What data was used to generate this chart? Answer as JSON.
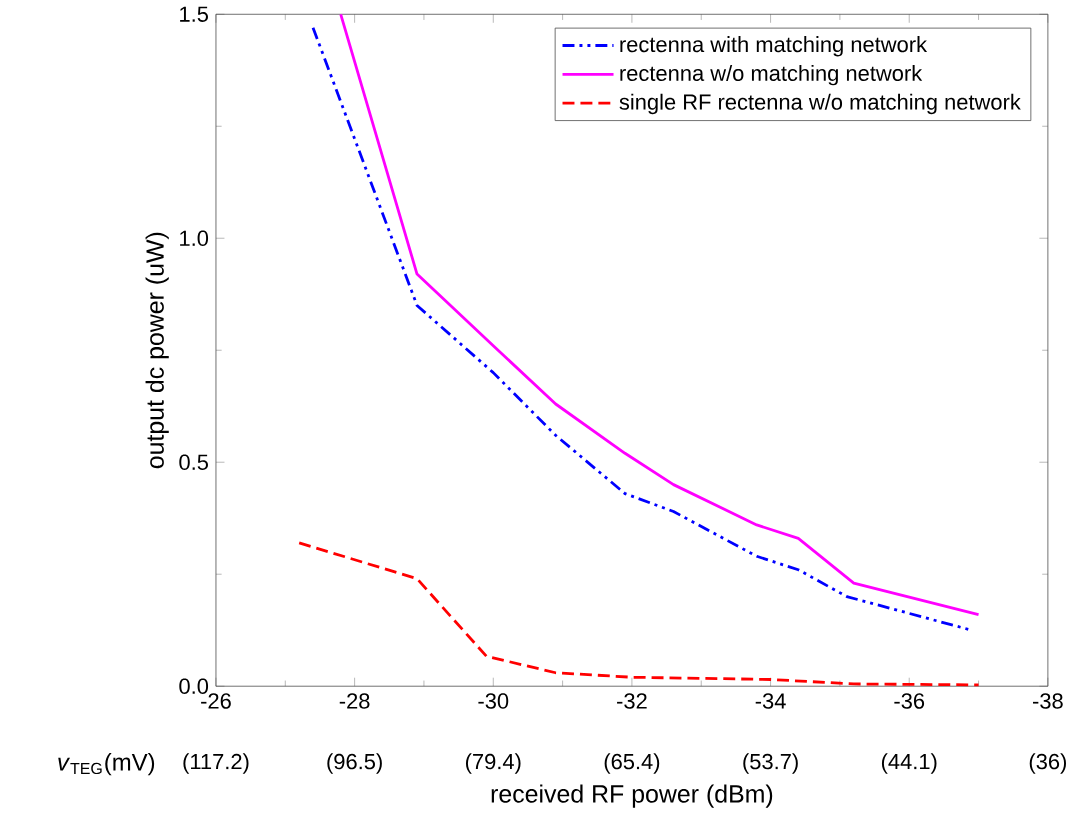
{
  "chart_data": {
    "type": "line",
    "xlabel": "received RF power (dBm)",
    "ylabel": "output dc power (uW)",
    "xlim": [
      -26,
      -38
    ],
    "ylim": [
      0,
      1.5
    ],
    "xticks": [
      -26,
      -28,
      -30,
      -32,
      -34,
      -36,
      -38
    ],
    "yticks": [
      {
        "value": 0,
        "label": "0.0"
      },
      {
        "value": 0.5,
        "label": "0.5"
      },
      {
        "value": 1.0,
        "label": "1.0"
      },
      {
        "value": 1.5,
        "label": "1.5"
      }
    ],
    "annotations": [
      "*v*$_{TEG}$(mV)",
      "(117.2)",
      "(96.5)",
      "(79.4)",
      "(65.4)",
      "(53.7)",
      "(44.1)",
      "(36)"
    ],
    "legend": "top right",
    "grid": false,
    "marker": "none",
    "series": [
      {
        "name": "rectenna with matching network",
        "color": "#0000ff",
        "line_style": "dashdot",
        "x": [
          -27.4,
          -28.9,
          -30,
          -30.9,
          -31.9,
          -32.6,
          -33.8,
          -34.4,
          -35.1,
          -36.9
        ],
        "values": [
          1.47,
          0.85,
          0.7,
          0.56,
          0.43,
          0.39,
          0.29,
          0.26,
          0.2,
          0.125
        ]
      },
      {
        "name": "rectenna w/o matching network",
        "color": "#ff00ff",
        "line_style": "solid",
        "x": [
          -27.8,
          -28.9,
          -30,
          -30.9,
          -31.9,
          -32.6,
          -33.8,
          -34.4,
          -35.2,
          -37.0
        ],
        "values": [
          1.5,
          0.92,
          0.76,
          0.63,
          0.52,
          0.45,
          0.36,
          0.33,
          0.23,
          0.16
        ]
      },
      {
        "name": "single RF rectenna w/o matching network",
        "color": "#ff0000",
        "line_style": "dashed",
        "x": [
          -27.2,
          -28.9,
          -29.9,
          -30.9,
          -32,
          -34,
          -35.2,
          -37
        ],
        "values": [
          0.32,
          0.24,
          0.067,
          0.03,
          0.02,
          0.015,
          0.005,
          0.003
        ]
      }
    ]
  }
}
